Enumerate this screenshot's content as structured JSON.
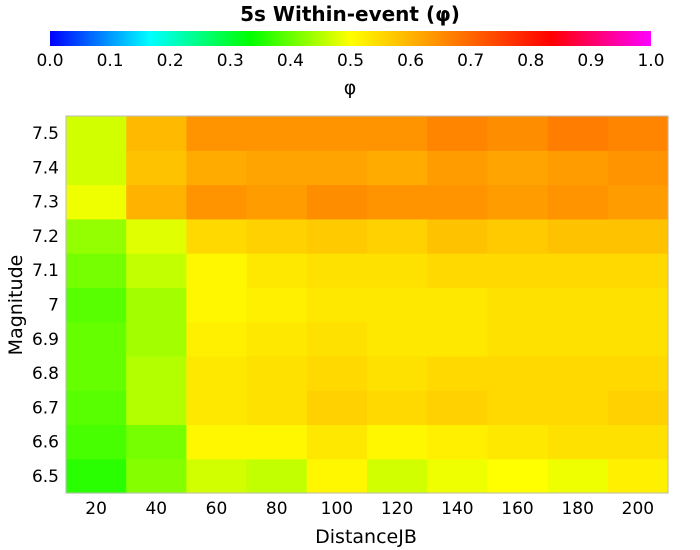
{
  "chart_data": {
    "type": "heatmap",
    "title": "5s Within-event (φ)",
    "xlabel": "DistanceJB",
    "ylabel": "Magnitude",
    "x": [
      20,
      40,
      60,
      80,
      100,
      120,
      140,
      160,
      180,
      200
    ],
    "y": [
      "6.5",
      "6.6",
      "6.7",
      "6.8",
      "6.9",
      "7",
      "7.1",
      "7.2",
      "7.3",
      "7.4",
      "7.5"
    ],
    "values": [
      [
        0.36,
        0.42,
        0.47,
        0.46,
        0.51,
        0.47,
        0.49,
        0.5,
        0.49,
        0.52
      ],
      [
        0.38,
        0.41,
        0.51,
        0.51,
        0.53,
        0.51,
        0.52,
        0.53,
        0.54,
        0.54
      ],
      [
        0.39,
        0.45,
        0.53,
        0.54,
        0.56,
        0.55,
        0.56,
        0.55,
        0.55,
        0.56
      ],
      [
        0.4,
        0.45,
        0.53,
        0.54,
        0.55,
        0.54,
        0.55,
        0.55,
        0.55,
        0.55
      ],
      [
        0.4,
        0.44,
        0.52,
        0.53,
        0.54,
        0.53,
        0.53,
        0.54,
        0.54,
        0.54
      ],
      [
        0.39,
        0.44,
        0.51,
        0.52,
        0.53,
        0.53,
        0.53,
        0.54,
        0.54,
        0.54
      ],
      [
        0.41,
        0.46,
        0.51,
        0.53,
        0.54,
        0.54,
        0.55,
        0.55,
        0.55,
        0.55
      ],
      [
        0.43,
        0.48,
        0.55,
        0.56,
        0.57,
        0.56,
        0.58,
        0.57,
        0.58,
        0.58
      ],
      [
        0.49,
        0.6,
        0.64,
        0.63,
        0.65,
        0.64,
        0.64,
        0.63,
        0.64,
        0.63
      ],
      [
        0.47,
        0.58,
        0.61,
        0.62,
        0.62,
        0.61,
        0.63,
        0.62,
        0.63,
        0.64
      ],
      [
        0.47,
        0.59,
        0.64,
        0.64,
        0.64,
        0.64,
        0.66,
        0.65,
        0.67,
        0.66
      ]
    ],
    "colorbar": {
      "label": "φ",
      "range": [
        0.0,
        1.0
      ],
      "ticks": [
        "0.0",
        "0.1",
        "0.2",
        "0.3",
        "0.4",
        "0.5",
        "0.6",
        "0.7",
        "0.8",
        "0.9",
        "1.0"
      ],
      "colormap": "hsv (blue → cyan → green → yellow → orange → red → magenta)",
      "position": "top"
    },
    "grid": false
  }
}
